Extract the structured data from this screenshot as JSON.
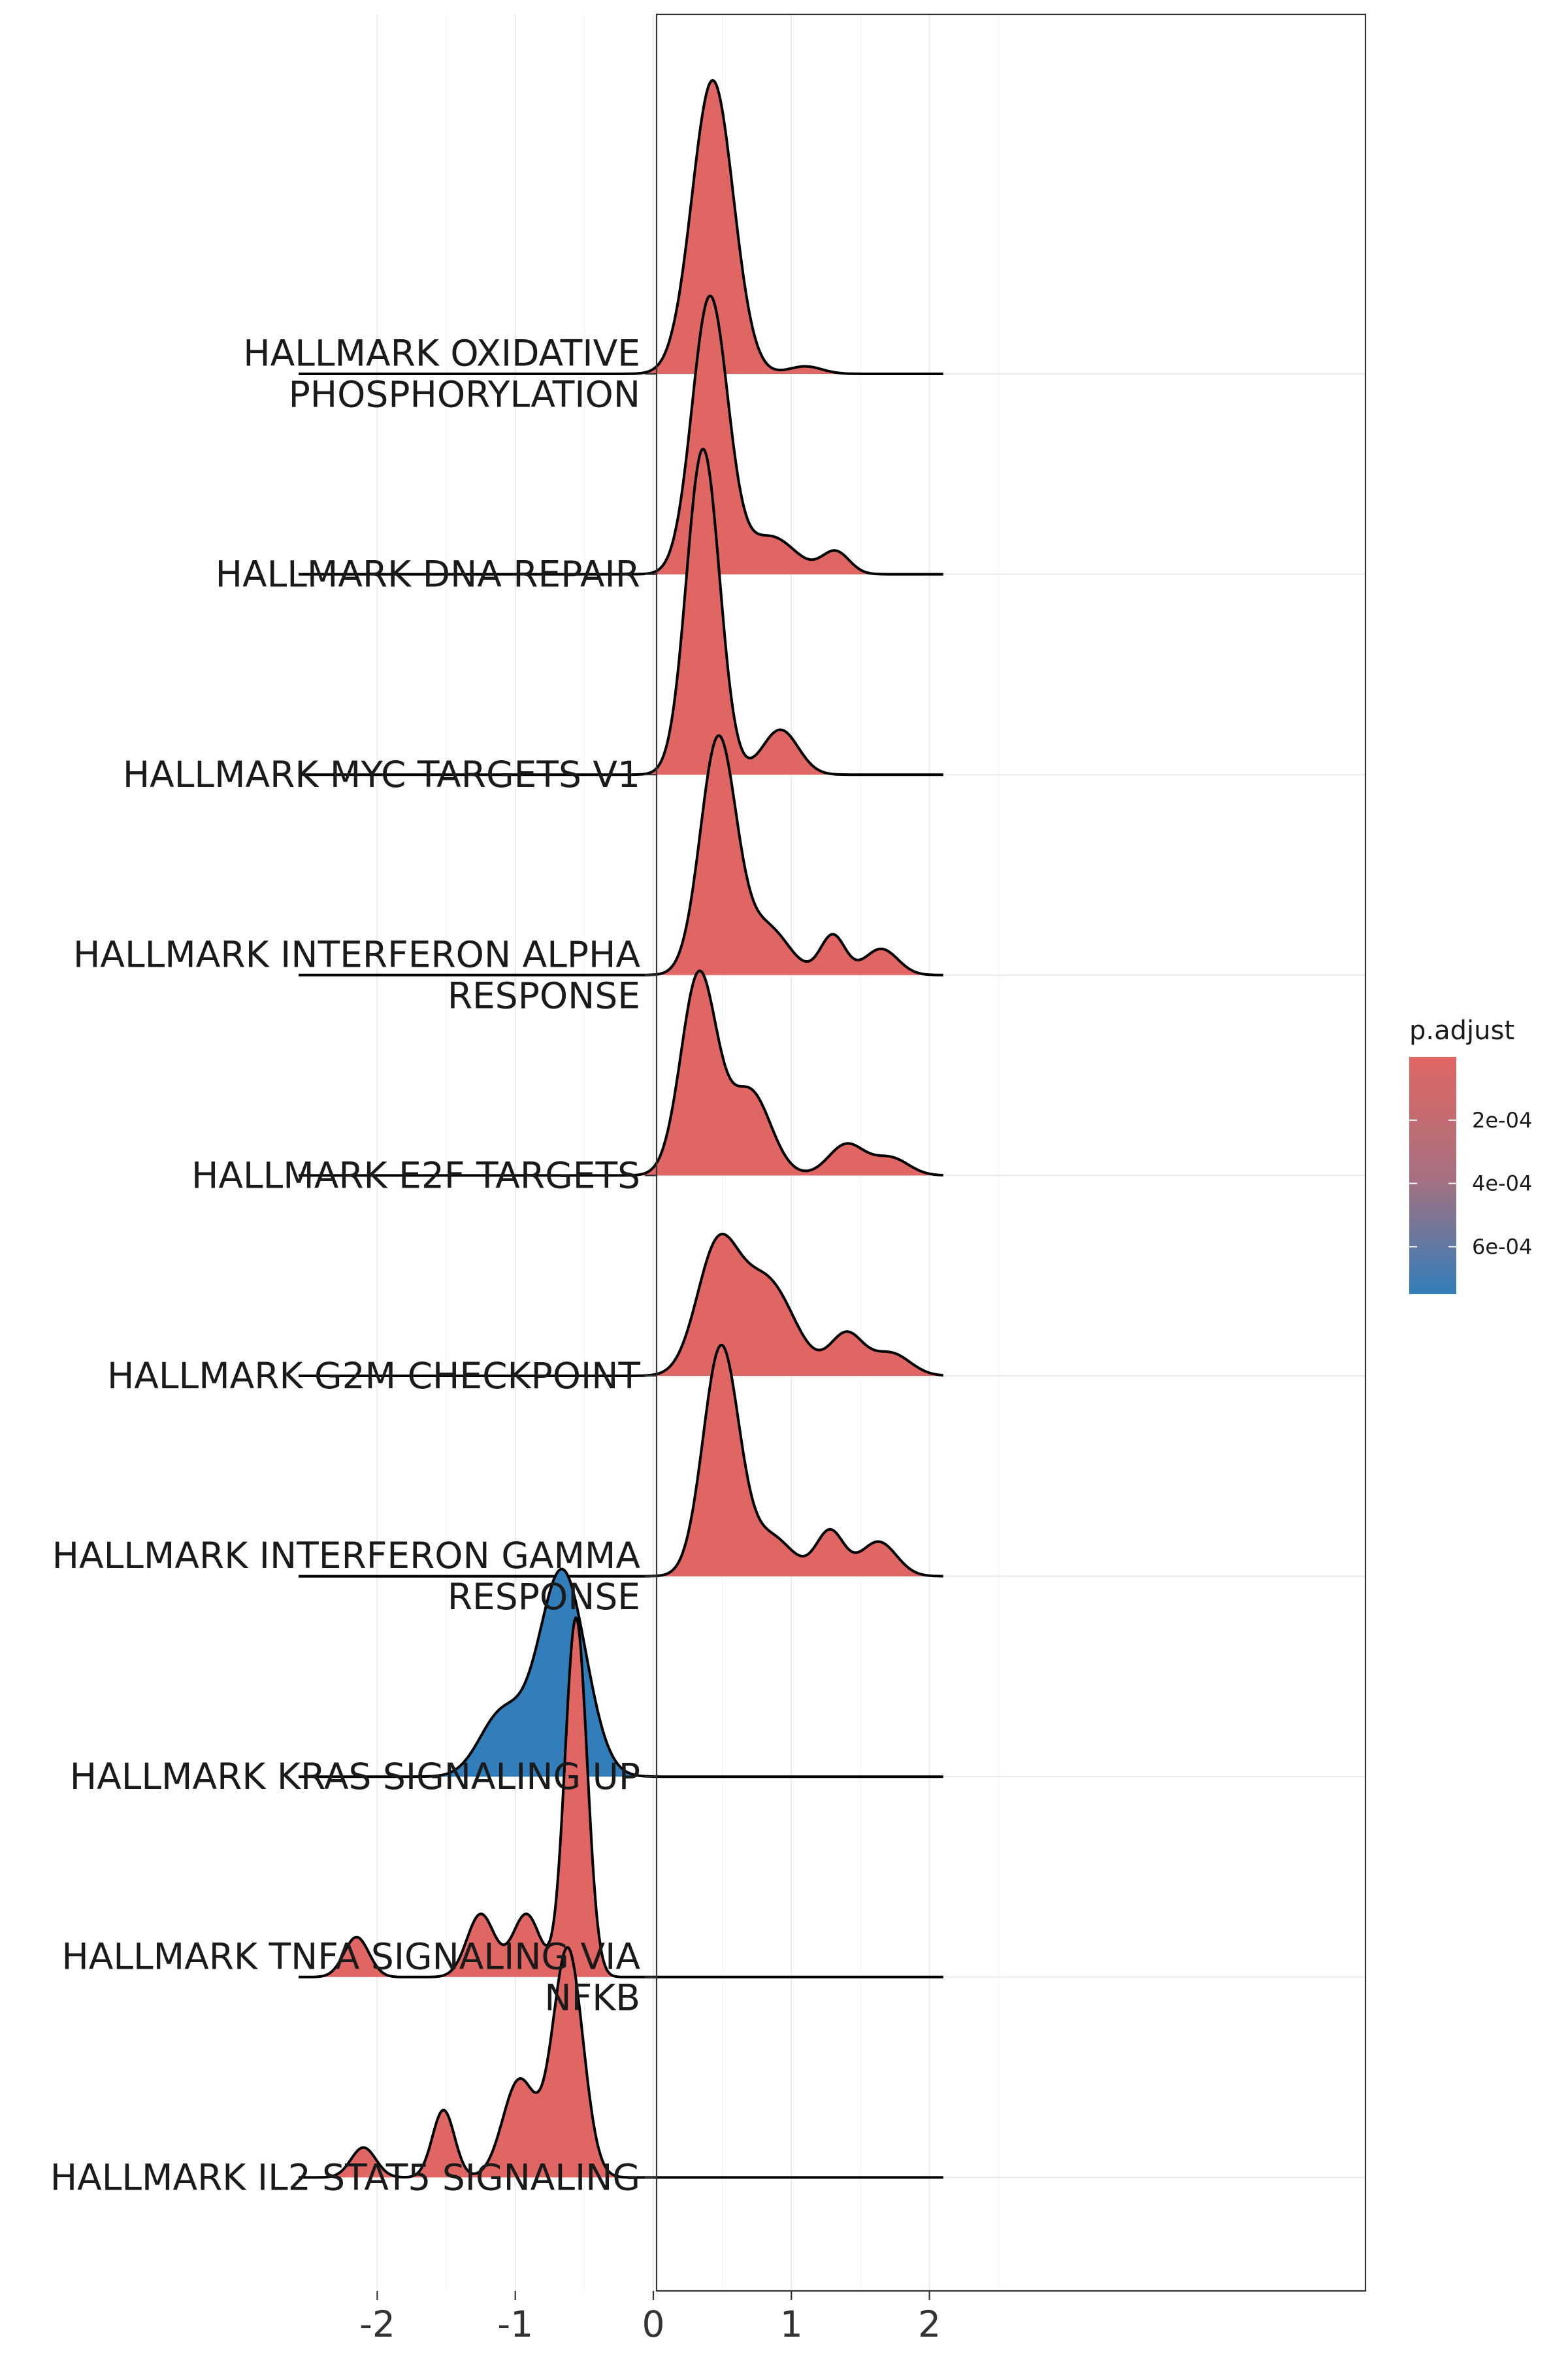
{
  "chart_data": {
    "type": "ridgeline",
    "title": "",
    "xlabel": "",
    "ylabel": "",
    "xlim": [
      -2.7,
      2.3
    ],
    "x_ticks": [
      -2,
      -1,
      0,
      1,
      2
    ],
    "x_tick_labels": [
      "-2",
      "-1",
      "0",
      "1",
      "2"
    ],
    "grid": true,
    "legend": {
      "title": "p.adjust",
      "placement": "right",
      "ticks": [
        0.0002,
        0.0004,
        0.0006
      ],
      "tick_labels": [
        "2e-04",
        "4e-04",
        "6e-04"
      ],
      "range": [
        0.0,
        0.00075
      ],
      "color_low": "#E06663",
      "color_high": "#327EBA"
    },
    "series": [
      {
        "name": "HALLMARK OXIDATIVE\nPHOSPHORYLATION",
        "p_adjust": 1e-05,
        "color": "#E06663",
        "components": [
          {
            "w": 0.98,
            "mu": 0.43,
            "sd": 0.15
          },
          {
            "w": 0.02,
            "mu": 1.1,
            "sd": 0.12
          }
        ]
      },
      {
        "name": "HALLMARK DNA REPAIR",
        "p_adjust": 1e-05,
        "color": "#E06663",
        "components": [
          {
            "w": 0.8,
            "mu": 0.41,
            "sd": 0.13
          },
          {
            "w": 0.15,
            "mu": 0.85,
            "sd": 0.18
          },
          {
            "w": 0.05,
            "mu": 1.32,
            "sd": 0.1
          }
        ]
      },
      {
        "name": "HALLMARK MYC TARGETS V1",
        "p_adjust": 1e-05,
        "color": "#E06663",
        "components": [
          {
            "w": 0.87,
            "mu": 0.36,
            "sd": 0.12
          },
          {
            "w": 0.13,
            "mu": 0.92,
            "sd": 0.13
          }
        ]
      },
      {
        "name": "HALLMARK INTERFERON ALPHA\nRESPONSE",
        "p_adjust": 1e-05,
        "color": "#E06663",
        "components": [
          {
            "w": 0.68,
            "mu": 0.47,
            "sd": 0.13
          },
          {
            "w": 0.17,
            "mu": 0.82,
            "sd": 0.16
          },
          {
            "w": 0.08,
            "mu": 1.3,
            "sd": 0.09
          },
          {
            "w": 0.07,
            "mu": 1.65,
            "sd": 0.12
          }
        ]
      },
      {
        "name": "HALLMARK E2F TARGETS",
        "p_adjust": 1e-05,
        "color": "#E06663",
        "components": [
          {
            "w": 0.58,
            "mu": 0.33,
            "sd": 0.13
          },
          {
            "w": 0.28,
            "mu": 0.7,
            "sd": 0.15
          },
          {
            "w": 0.09,
            "mu": 1.4,
            "sd": 0.13
          },
          {
            "w": 0.05,
            "mu": 1.72,
            "sd": 0.13
          }
        ]
      },
      {
        "name": "HALLMARK G2M CHECKPOINT",
        "p_adjust": 1e-05,
        "color": "#E06663",
        "components": [
          {
            "w": 0.4,
            "mu": 0.46,
            "sd": 0.15
          },
          {
            "w": 0.42,
            "mu": 0.82,
            "sd": 0.2
          },
          {
            "w": 0.11,
            "mu": 1.4,
            "sd": 0.12
          },
          {
            "w": 0.07,
            "mu": 1.72,
            "sd": 0.14
          }
        ]
      },
      {
        "name": "HALLMARK INTERFERON GAMMA\nRESPONSE",
        "p_adjust": 1e-05,
        "color": "#E06663",
        "components": [
          {
            "w": 0.66,
            "mu": 0.49,
            "sd": 0.13
          },
          {
            "w": 0.14,
            "mu": 0.85,
            "sd": 0.16
          },
          {
            "w": 0.1,
            "mu": 1.28,
            "sd": 0.1
          },
          {
            "w": 0.1,
            "mu": 1.63,
            "sd": 0.13
          }
        ]
      },
      {
        "name": "HALLMARK KRAS SIGNALING UP",
        "p_adjust": 0.00072,
        "color": "#327EBA",
        "components": [
          {
            "w": 0.78,
            "mu": -0.66,
            "sd": 0.17
          },
          {
            "w": 0.22,
            "mu": -1.1,
            "sd": 0.16
          }
        ]
      },
      {
        "name": "HALLMARK TNFA SIGNALING VIA\nNFKB",
        "p_adjust": 1e-05,
        "color": "#E06663",
        "components": [
          {
            "w": 0.64,
            "mu": -0.56,
            "sd": 0.08
          },
          {
            "w": 0.14,
            "mu": -0.92,
            "sd": 0.1
          },
          {
            "w": 0.14,
            "mu": -1.25,
            "sd": 0.1
          },
          {
            "w": 0.08,
            "mu": -2.15,
            "sd": 0.09
          }
        ]
      },
      {
        "name": "HALLMARK IL2 STAT5 SIGNALING",
        "p_adjust": 1e-05,
        "color": "#E06663",
        "components": [
          {
            "w": 0.56,
            "mu": -0.62,
            "sd": 0.11
          },
          {
            "w": 0.26,
            "mu": -0.97,
            "sd": 0.12
          },
          {
            "w": 0.12,
            "mu": -1.52,
            "sd": 0.08
          },
          {
            "w": 0.06,
            "mu": -2.1,
            "sd": 0.09
          }
        ]
      }
    ]
  }
}
